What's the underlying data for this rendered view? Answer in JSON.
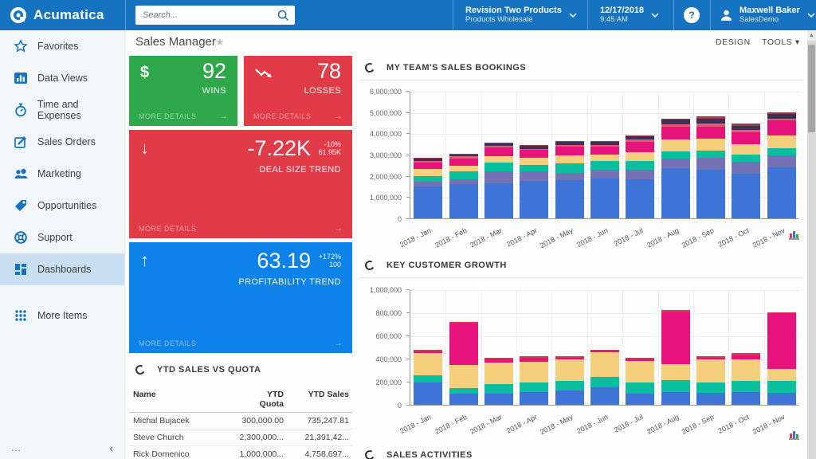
{
  "topbar": {
    "brand": "Acumatica",
    "search_placeholder": "Search...",
    "company": {
      "name": "Revision Two Products",
      "branch": "Products Wholesale"
    },
    "datetime": {
      "date": "12/17/2018",
      "time": "9:45 AM"
    },
    "help_label": "?",
    "user": {
      "name": "Maxwell Baker",
      "role": "SalesDemo"
    },
    "icons": [
      "acumatica-logo",
      "search-icon",
      "chevron-down-icon",
      "help-icon",
      "user-icon"
    ]
  },
  "sidebar": {
    "items": [
      {
        "label": "Favorites",
        "icon": "star-icon",
        "selected": false
      },
      {
        "label": "Data Views",
        "icon": "bar-chart-icon",
        "selected": false
      },
      {
        "label": "Time and Expenses",
        "icon": "stopwatch-icon",
        "selected": false
      },
      {
        "label": "Sales Orders",
        "icon": "edit-square-icon",
        "selected": false
      },
      {
        "label": "Marketing",
        "icon": "people-icon",
        "selected": false
      },
      {
        "label": "Opportunities",
        "icon": "tag-icon",
        "selected": false
      },
      {
        "label": "Support",
        "icon": "life-ring-icon",
        "selected": false
      },
      {
        "label": "Dashboards",
        "icon": "dashboard-tiles-icon",
        "selected": true
      }
    ],
    "more_item": {
      "label": "More Items",
      "icon": "dots-grid-icon"
    },
    "footer": {
      "ellipsis": "...",
      "collapse_icon": "chevron-left-icon"
    }
  },
  "titlebar": {
    "title": "Sales Manager",
    "favorite_icon": "star-icon",
    "design_label": "DESIGN",
    "tools_label": "TOOLS"
  },
  "tiles": {
    "more_label": "MORE DETAILS",
    "arrow_icon": "arrow-right-icon",
    "wins": {
      "icon": "dollar-icon",
      "value": "92",
      "label": "WINS",
      "color": "#2fa84c"
    },
    "losses": {
      "icon": "trend-down-zigzag-icon",
      "value": "78",
      "label": "LOSSES",
      "color": "#e23b48"
    },
    "deal_size": {
      "icon": "arrow-down-icon",
      "value": "-7.22K",
      "delta": "-10%",
      "target": "61.95K",
      "label": "DEAL SIZE TREND",
      "color": "#e23b48"
    },
    "profitability": {
      "icon": "arrow-up-icon",
      "value": "63.19",
      "delta": "+172%",
      "target": "100",
      "label": "PROFITABILITY TREND",
      "color": "#0d82e8"
    }
  },
  "ytd": {
    "title": "YTD SALES VS QUOTA",
    "columns": [
      "Name",
      "YTD Quota",
      "YTD Sales"
    ],
    "rows": [
      [
        "Michal Bujacek",
        "300,000.00",
        "735,247.81"
      ],
      [
        "Steve Church",
        "2,300,000...",
        "21,391,42..."
      ],
      [
        "Rick Domenico",
        "1,000,000...",
        "4,758,697..."
      ]
    ]
  },
  "panels": {
    "bookings_title": "MY TEAM'S SALES BOOKINGS",
    "growth_title": "KEY CUSTOMER GROWTH",
    "activities_title": "SALES ACTIVITIES"
  },
  "chart_data": [
    {
      "type": "bar",
      "stacked": true,
      "title": "MY TEAM'S SALES BOOKINGS",
      "xlabel": "",
      "ylabel": "",
      "ylim": [
        0,
        6000000
      ],
      "grid": true,
      "legend": "none",
      "yticks": [
        "0",
        "1,000,000",
        "2,000,000",
        "3,000,000",
        "4,000,000",
        "5,000,000",
        "6,000,000"
      ],
      "categories": [
        "2018 - Jan",
        "2018 - Feb",
        "2018 - Mar",
        "2018 - Apr",
        "2018 - May",
        "2018 - Jun",
        "2018 - Jul",
        "2018 - Aug",
        "2018 - Sep",
        "2018 - Oct",
        "2018 - Nov"
      ],
      "series": [
        {
          "name": "segment-blue",
          "color": "#3e74d8",
          "values": [
            1500000,
            1620000,
            1650000,
            1750000,
            1800000,
            1880000,
            1850000,
            2350000,
            2300000,
            2100000,
            2400000
          ]
        },
        {
          "name": "segment-purple",
          "color": "#7372b4",
          "values": [
            220000,
            200000,
            550000,
            450000,
            350000,
            420000,
            450000,
            450000,
            550000,
            550000,
            550000
          ]
        },
        {
          "name": "segment-teal",
          "color": "#0abf9d",
          "values": [
            280000,
            380000,
            420000,
            320000,
            450000,
            400000,
            400000,
            350000,
            350000,
            350000,
            350000
          ]
        },
        {
          "name": "segment-yellow",
          "color": "#f6cf7d",
          "values": [
            330000,
            280000,
            300000,
            320000,
            350000,
            300000,
            400000,
            550000,
            550000,
            500000,
            600000
          ]
        },
        {
          "name": "segment-magenta",
          "color": "#e8127d",
          "values": [
            300000,
            350000,
            420000,
            380000,
            420000,
            380000,
            520000,
            600000,
            550000,
            550000,
            700000
          ]
        },
        {
          "name": "segment-rose",
          "color": "#e05c74",
          "values": [
            80000,
            80000,
            70000,
            60000,
            80000,
            70000,
            80000,
            120000,
            150000,
            100000,
            100000
          ]
        },
        {
          "name": "segment-navy",
          "color": "#3d2f56",
          "values": [
            100000,
            100000,
            100000,
            130000,
            160000,
            160000,
            160000,
            220000,
            250000,
            220000,
            220000
          ]
        },
        {
          "name": "segment-maroon",
          "color": "#9e3a4a",
          "values": [
            40000,
            40000,
            40000,
            40000,
            40000,
            40000,
            40000,
            60000,
            100000,
            80000,
            80000
          ]
        }
      ]
    },
    {
      "type": "bar",
      "stacked": true,
      "title": "KEY CUSTOMER GROWTH",
      "xlabel": "",
      "ylabel": "",
      "ylim": [
        0,
        1000000
      ],
      "grid": true,
      "legend": "none",
      "yticks": [
        "0",
        "200,000",
        "400,000",
        "600,000",
        "800,000",
        "1,000,000"
      ],
      "categories": [
        "2018 - Jan",
        "2018 - Feb",
        "2018 - Mar",
        "2018 - Apr",
        "2018 - May",
        "2018 - Jun",
        "2018 - Jul",
        "2018 - Aug",
        "2018 - Sep",
        "2018 - Oct",
        "2018 - Nov"
      ],
      "series": [
        {
          "name": "segment-blue",
          "color": "#3e74d8",
          "values": [
            190000,
            95000,
            95000,
            110000,
            125000,
            150000,
            100000,
            110000,
            105000,
            110000,
            105000
          ]
        },
        {
          "name": "segment-teal",
          "color": "#0abf9d",
          "values": [
            65000,
            50000,
            85000,
            85000,
            80000,
            90000,
            95000,
            105000,
            85000,
            95000,
            105000
          ]
        },
        {
          "name": "segment-yellow",
          "color": "#f6cf7d",
          "values": [
            195000,
            200000,
            185000,
            180000,
            185000,
            215000,
            185000,
            140000,
            205000,
            190000,
            100000
          ]
        },
        {
          "name": "segment-magenta",
          "color": "#e8127d",
          "values": [
            15000,
            360000,
            30000,
            35000,
            20000,
            15000,
            15000,
            445000,
            15000,
            35000,
            480000
          ]
        },
        {
          "name": "segment-red",
          "color": "#d63852",
          "values": [
            10000,
            10000,
            10000,
            10000,
            10000,
            5000,
            10000,
            20000,
            10000,
            20000,
            10000
          ]
        }
      ]
    }
  ],
  "colors": {
    "brand_blue": "#1673c1",
    "nav_selected": "#cbdff2",
    "tile_green": "#2fa84c",
    "tile_red": "#e23b48",
    "tile_blue": "#0d82e8"
  }
}
